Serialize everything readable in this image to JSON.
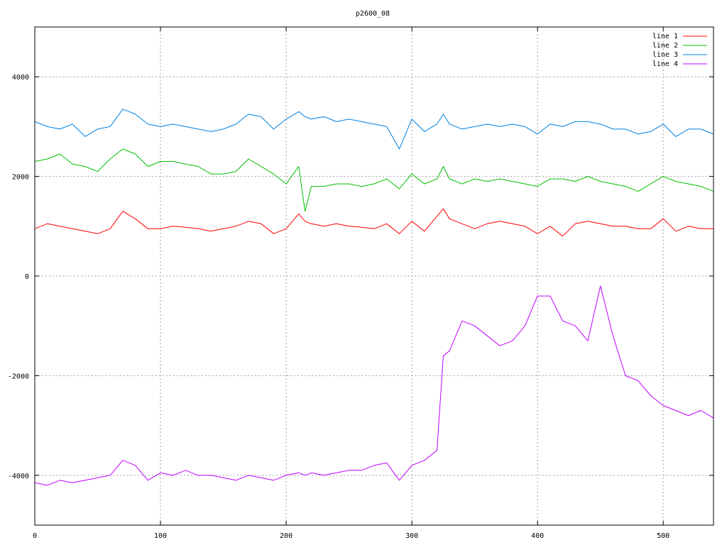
{
  "chart_data": {
    "type": "line",
    "title": "p2600_08",
    "xlabel": "",
    "ylabel": "",
    "xlim": [
      0,
      540
    ],
    "ylim": [
      -5000,
      5000
    ],
    "x_ticks": [
      0,
      100,
      200,
      300,
      400,
      500
    ],
    "y_ticks": [
      -4000,
      -2000,
      0,
      2000,
      4000
    ],
    "x_tick_labels": [
      "0",
      "100",
      "200",
      "300",
      "400",
      "500"
    ],
    "y_tick_labels": [
      "-4000",
      "-2000",
      "0",
      "2000",
      "4000"
    ],
    "grid": true,
    "legend_position": "top-right",
    "x": [
      0,
      10,
      20,
      30,
      40,
      50,
      60,
      70,
      80,
      90,
      100,
      110,
      120,
      130,
      140,
      150,
      160,
      170,
      180,
      190,
      200,
      210,
      215,
      220,
      230,
      240,
      250,
      260,
      270,
      280,
      290,
      300,
      310,
      320,
      325,
      330,
      340,
      350,
      360,
      370,
      380,
      390,
      400,
      410,
      420,
      430,
      440,
      450,
      460,
      470,
      480,
      490,
      500,
      510,
      520,
      530,
      540
    ],
    "series": [
      {
        "name": "line 1",
        "color": "#ff0000",
        "values": [
          950,
          1050,
          1000,
          950,
          900,
          850,
          950,
          1300,
          1150,
          950,
          950,
          1000,
          980,
          950,
          900,
          950,
          1000,
          1100,
          1050,
          850,
          950,
          1250,
          1100,
          1050,
          1000,
          1050,
          1000,
          980,
          950,
          1050,
          850,
          1100,
          900,
          1200,
          1350,
          1150,
          1050,
          950,
          1050,
          1100,
          1050,
          1000,
          850,
          1000,
          800,
          1050,
          1100,
          1050,
          1000,
          1000,
          950,
          950,
          1150,
          900,
          1000,
          950,
          950
        ]
      },
      {
        "name": "line 2",
        "color": "#00c000",
        "values": [
          2300,
          2350,
          2450,
          2250,
          2200,
          2100,
          2350,
          2550,
          2450,
          2200,
          2300,
          2300,
          2250,
          2200,
          2050,
          2050,
          2100,
          2350,
          2200,
          2050,
          1850,
          2200,
          1300,
          1800,
          1800,
          1850,
          1850,
          1800,
          1850,
          1950,
          1750,
          2050,
          1850,
          1950,
          2200,
          1950,
          1850,
          1950,
          1900,
          1950,
          1900,
          1850,
          1800,
          1950,
          1950,
          1900,
          2000,
          1900,
          1850,
          1800,
          1700,
          1850,
          2000,
          1900,
          1850,
          1800,
          1700
        ]
      },
      {
        "name": "line 3",
        "color": "#0080e0",
        "values": [
          3100,
          3000,
          2950,
          3050,
          2800,
          2950,
          3000,
          3350,
          3250,
          3050,
          3000,
          3050,
          3000,
          2950,
          2900,
          2950,
          3050,
          3250,
          3200,
          2950,
          3150,
          3300,
          3200,
          3150,
          3200,
          3100,
          3150,
          3100,
          3050,
          3000,
          2550,
          3150,
          2900,
          3050,
          3250,
          3050,
          2950,
          3000,
          3050,
          3000,
          3050,
          3000,
          2850,
          3050,
          3000,
          3100,
          3100,
          3050,
          2950,
          2950,
          2850,
          2900,
          3050,
          2800,
          2950,
          2950,
          2850
        ]
      },
      {
        "name": "line 4",
        "color": "#c000ff",
        "values": [
          -4150,
          -4200,
          -4100,
          -4150,
          -4100,
          -4050,
          -4000,
          -3700,
          -3800,
          -4100,
          -3950,
          -4000,
          -3900,
          -4000,
          -4000,
          -4050,
          -4100,
          -4000,
          -4050,
          -4100,
          -4000,
          -3950,
          -4000,
          -3950,
          -4000,
          -3950,
          -3900,
          -3900,
          -3800,
          -3750,
          -4100,
          -3800,
          -3700,
          -3500,
          -1600,
          -1500,
          -900,
          -1000,
          -1200,
          -1400,
          -1300,
          -1000,
          -400,
          -400,
          -900,
          -1000,
          -1300,
          -200,
          -1200,
          -2000,
          -2100,
          -2400,
          -2600,
          -2700,
          -2800,
          -2700,
          -2850
        ]
      }
    ]
  }
}
